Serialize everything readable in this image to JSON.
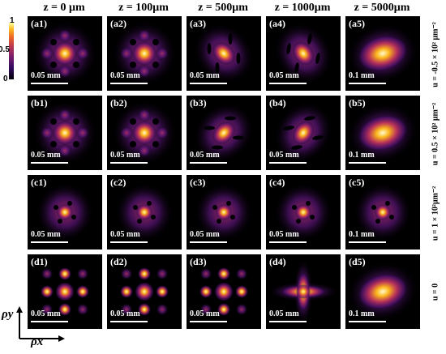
{
  "column_headers": [
    "z = 0 μm",
    "z = 100μm",
    "z = 500μm",
    "z = 1000μm",
    "z = 5000μm"
  ],
  "row_labels": [
    "u = -0.5 × 10² μm⁻²",
    "u = 0.5 × 10² μm⁻²",
    "u = 1 × 10²μm⁻²",
    "u = 0"
  ],
  "colorbar": {
    "max_label": "1",
    "mid_label": "0.5",
    "min_label": "0",
    "colormap": "inferno"
  },
  "axes": {
    "y_label": "ρy",
    "x_label": "ρx"
  },
  "panels": [
    [
      {
        "label": "(a1)",
        "scale": "0.05 mm",
        "pattern": "ring"
      },
      {
        "label": "(a2)",
        "scale": "0.05 mm",
        "pattern": "ring"
      },
      {
        "label": "(a3)",
        "scale": "0.05 mm",
        "pattern": "swirl"
      },
      {
        "label": "(a4)",
        "scale": "0.05 mm",
        "pattern": "swirl"
      },
      {
        "label": "(a5)",
        "scale": "0.1 mm",
        "pattern": "blob"
      }
    ],
    [
      {
        "label": "(b1)",
        "scale": "0.05 mm",
        "pattern": "ring"
      },
      {
        "label": "(b2)",
        "scale": "0.05 mm",
        "pattern": "ring"
      },
      {
        "label": "(b3)",
        "scale": "0.05 mm",
        "pattern": "swirl"
      },
      {
        "label": "(b4)",
        "scale": "0.05 mm",
        "pattern": "swirl"
      },
      {
        "label": "(b5)",
        "scale": "0.1 mm",
        "pattern": "blob"
      }
    ],
    [
      {
        "label": "(c1)",
        "scale": "0.05 mm",
        "pattern": "spots"
      },
      {
        "label": "(c2)",
        "scale": "0.05 mm",
        "pattern": "spots"
      },
      {
        "label": "(c3)",
        "scale": "0.05 mm",
        "pattern": "spots"
      },
      {
        "label": "(c4)",
        "scale": "0.05 mm",
        "pattern": "spots"
      },
      {
        "label": "(c5)",
        "scale": "0.1 mm",
        "pattern": "spots"
      }
    ],
    [
      {
        "label": "(d1)",
        "scale": "0.05 mm",
        "pattern": "grid"
      },
      {
        "label": "(d2)",
        "scale": "0.05 mm",
        "pattern": "grid"
      },
      {
        "label": "(d3)",
        "scale": "0.05 mm",
        "pattern": "grid"
      },
      {
        "label": "(d4)",
        "scale": "0.05 mm",
        "pattern": "cross"
      },
      {
        "label": "(d5)",
        "scale": "0.1 mm",
        "pattern": "blob"
      }
    ]
  ]
}
